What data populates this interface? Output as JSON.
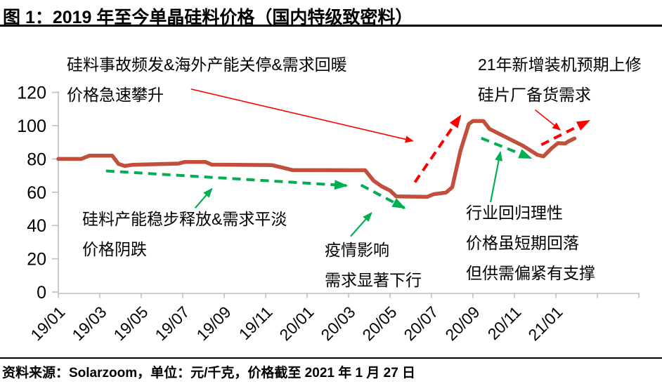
{
  "title": "图 1：2019 年至今单晶硅料价格（国内特级致密料）",
  "source_note": "资料来源：Solarzoom，单位：元/千克，价格截至 2021 年 1 月 27 日",
  "colors": {
    "price_line": "#C0503C",
    "trend_green": "#00B050",
    "arrow_red": "#FF0000",
    "axis_gray": "#BFBFBF",
    "text_black": "#000000"
  },
  "annotations": {
    "top_left": {
      "line1": "硅料事故频发&海外产能关停&需求回暖",
      "line2": "价格急速攀升"
    },
    "top_right": {
      "line1": "21年新增装机预期上修",
      "line2": "硅片厂备货需求"
    },
    "mid_left": {
      "line1": "硅料产能稳步释放&需求平淡",
      "line2": "价格阴跌"
    },
    "mid_center": {
      "line1": "疫情影响",
      "line2": "需求显著下行"
    },
    "mid_right": {
      "line1": "行业回归理性",
      "line2": "价格虽短期回落",
      "line3": "但供需偏紧有支撑"
    }
  },
  "chart_data": {
    "type": "line",
    "title": "2019年至今单晶硅料价格（国内特级致密料）",
    "unit": "元/千克",
    "x_unit": "months_since_2019_01",
    "x_axis": {
      "tick_labels": [
        "19/01",
        "19/03",
        "19/05",
        "19/07",
        "19/09",
        "19/11",
        "20/01",
        "20/03",
        "20/05",
        "20/07",
        "20/09",
        "20/11",
        "21/01"
      ],
      "months_per_tick": 2,
      "extra_unlabeled_ticks": 2,
      "label_rotation_deg": -45
    },
    "y_axis": {
      "min": 0,
      "max": 120,
      "step": 20,
      "tick_labels": [
        "0",
        "20",
        "40",
        "60",
        "80",
        "100",
        "120"
      ]
    },
    "grid": false,
    "legend": false,
    "series": [
      {
        "name": "单晶硅料价格",
        "style": "solid",
        "color_key": "price_line",
        "width": 5.5,
        "points": [
          [
            0,
            80
          ],
          [
            1.1,
            80
          ],
          [
            1.5,
            82
          ],
          [
            2.6,
            82
          ],
          [
            2.9,
            77
          ],
          [
            3.2,
            75.8
          ],
          [
            3.6,
            76.5
          ],
          [
            5.8,
            77.2
          ],
          [
            6.1,
            78.2
          ],
          [
            7.1,
            78.2
          ],
          [
            7.4,
            76.6
          ],
          [
            10.3,
            76.3
          ],
          [
            10.8,
            74.8
          ],
          [
            11.3,
            73.3
          ],
          [
            14.8,
            73.2
          ],
          [
            15.2,
            67
          ],
          [
            15.6,
            63.5
          ],
          [
            16,
            61
          ],
          [
            16.3,
            57.5
          ],
          [
            17.8,
            57.2
          ],
          [
            18.1,
            58.8
          ],
          [
            18.7,
            59.8
          ],
          [
            19,
            63
          ],
          [
            19.4,
            85
          ],
          [
            19.8,
            101
          ],
          [
            20,
            102.8
          ],
          [
            20.5,
            102.8
          ],
          [
            20.8,
            98
          ],
          [
            21.6,
            93
          ],
          [
            22.4,
            88
          ],
          [
            23.1,
            82.5
          ],
          [
            23.4,
            81.5
          ],
          [
            23.8,
            86.5
          ],
          [
            24.1,
            89.5
          ],
          [
            24.45,
            89.3
          ],
          [
            24.6,
            90.5
          ],
          [
            24.9,
            92.3
          ]
        ]
      }
    ],
    "trend_arrows": [
      {
        "color_key": "trend_green",
        "dashed": true,
        "from": [
          2.3,
          72.8
        ],
        "to": [
          13.9,
          64
        ]
      },
      {
        "color_key": "trend_green",
        "dashed": true,
        "from": [
          14.6,
          64.3
        ],
        "to": [
          16.7,
          50.5
        ]
      },
      {
        "color_key": "trend_green",
        "dashed": true,
        "from": [
          20.4,
          92.5
        ],
        "to": [
          22.8,
          80.5
        ]
      },
      {
        "color_key": "arrow_red",
        "dashed": true,
        "from": [
          17.2,
          66
        ],
        "to": [
          19.4,
          106
        ]
      },
      {
        "color_key": "arrow_red",
        "dashed": true,
        "from": [
          23.3,
          88.5
        ],
        "to": [
          25.6,
          103
        ]
      }
    ],
    "callout_arrows": [
      {
        "color_key": "arrow_red",
        "from": [
          6.4,
          122
        ],
        "to": [
          17.1,
          90.8
        ]
      },
      {
        "color_key": "arrow_red",
        "from": [
          23,
          109.5
        ],
        "to": [
          24.2,
          97.5
        ]
      },
      {
        "color_key": "trend_green",
        "from": [
          6.6,
          50.5
        ],
        "to": [
          7.4,
          62
        ]
      },
      {
        "color_key": "trend_green",
        "from": [
          14.1,
          33.5
        ],
        "to": [
          15.1,
          47.5
        ]
      },
      {
        "color_key": "trend_green",
        "from": [
          20.85,
          54
        ],
        "to": [
          21.32,
          84
        ]
      }
    ]
  }
}
